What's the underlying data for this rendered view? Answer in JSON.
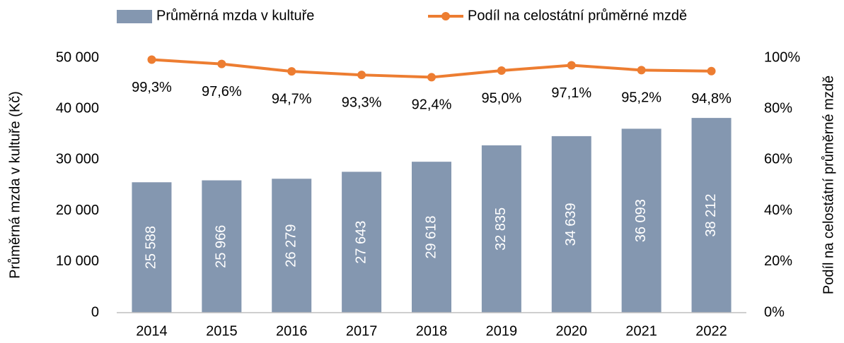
{
  "chart_data": {
    "type": "bar-line",
    "categories": [
      "2014",
      "2015",
      "2016",
      "2017",
      "2018",
      "2019",
      "2020",
      "2021",
      "2022"
    ],
    "series": [
      {
        "name": "Průměrná mzda v kultuře",
        "type": "bar",
        "color": "#8497b0",
        "values": [
          25588,
          25966,
          26279,
          27643,
          29618,
          32835,
          34639,
          36093,
          38212
        ],
        "value_labels": [
          "25 588",
          "25 966",
          "26 279",
          "27 643",
          "29 618",
          "32 835",
          "34 639",
          "36 093",
          "38 212"
        ]
      },
      {
        "name": "Podíl na celostátní průměrné mzdě",
        "type": "line",
        "axis": "y2",
        "color": "#ed7d31",
        "values": [
          99.3,
          97.6,
          94.7,
          93.3,
          92.4,
          95.0,
          97.1,
          95.2,
          94.8
        ],
        "value_labels": [
          "99,3%",
          "97,6%",
          "94,7%",
          "93,3%",
          "92,4%",
          "95,0%",
          "97,1%",
          "95,2%",
          "94,8%"
        ]
      }
    ],
    "ylabel": "Průměrná mzda v kultuře (Kč)",
    "y2label": "Podíl na celostátní průměrné mzdě",
    "ylim": [
      0,
      50000
    ],
    "yticks": [
      0,
      {
        "value": 10000,
        "label": "10 000"
      },
      {
        "value": 20000,
        "label": "20 000"
      },
      {
        "value": 30000,
        "label": "30 000"
      },
      {
        "value": 40000,
        "label": "40 000"
      },
      {
        "value": 50000,
        "label": "50 000"
      }
    ],
    "y2lim": [
      0,
      100
    ],
    "y2ticks": [
      {
        "value": 0,
        "label": "0%"
      },
      {
        "value": 20,
        "label": "20%"
      },
      {
        "value": 40,
        "label": "40%"
      },
      {
        "value": 60,
        "label": "60%"
      },
      {
        "value": 80,
        "label": "80%"
      },
      {
        "value": 100,
        "label": "100%"
      }
    ],
    "legend": "top"
  }
}
